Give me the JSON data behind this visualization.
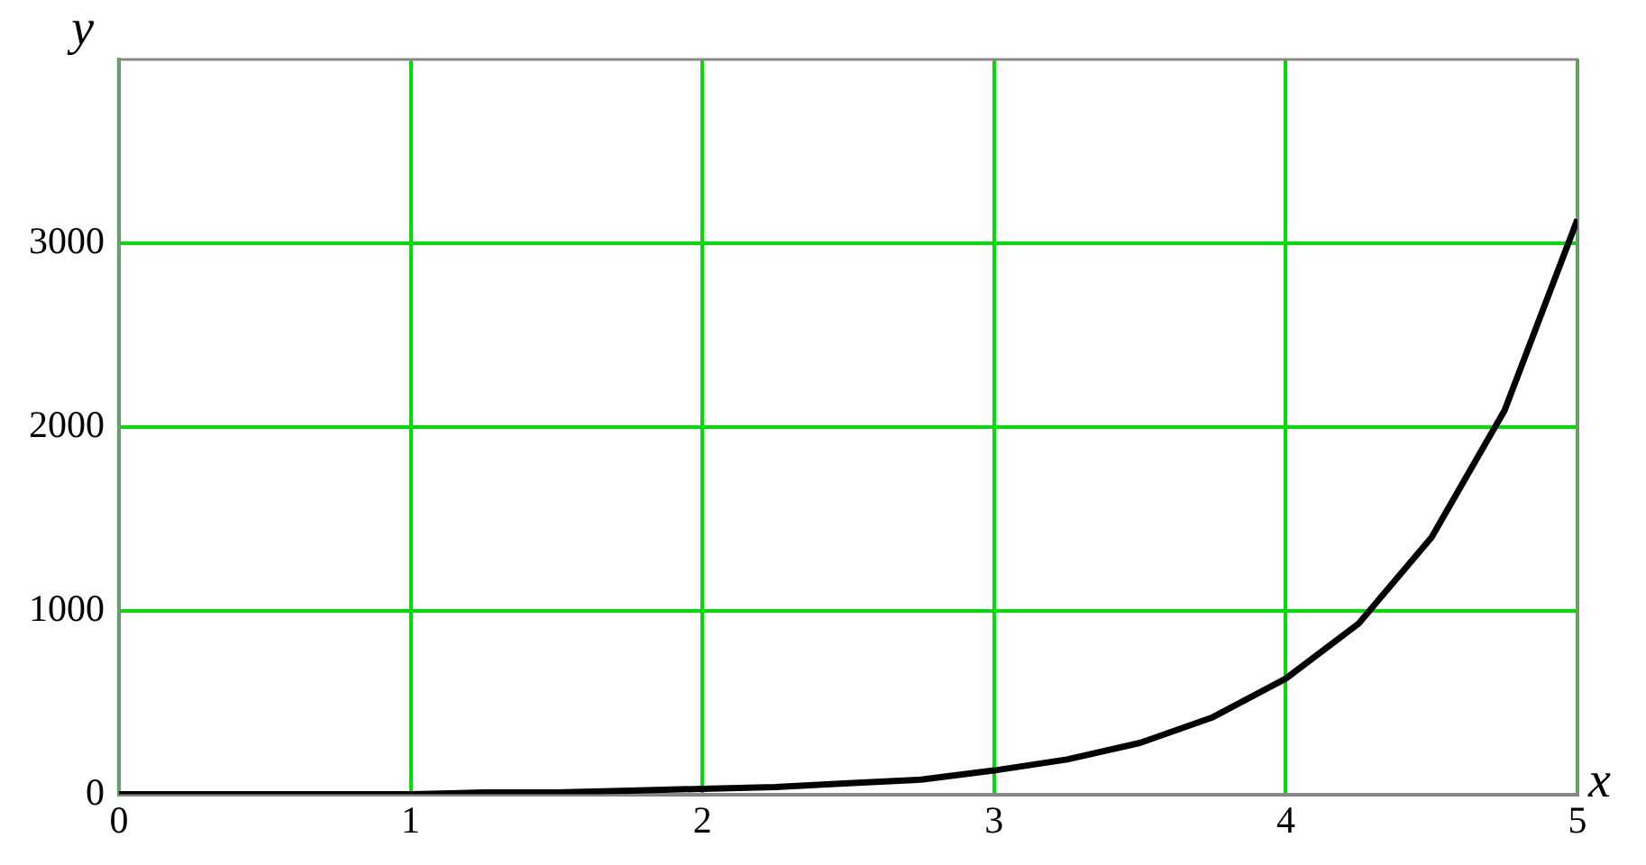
{
  "chart_data": {
    "type": "line",
    "xlabel": "x",
    "ylabel": "y",
    "x": [
      0,
      0.25,
      0.5,
      0.75,
      1,
      1.25,
      1.5,
      1.75,
      2,
      2.25,
      2.5,
      2.75,
      3,
      3.25,
      3.5,
      3.75,
      4,
      4.25,
      4.5,
      4.75,
      5
    ],
    "series": [
      {
        "color": "#000000",
        "values": [
          0,
          0,
          0,
          0,
          0,
          10,
          10,
          20,
          30,
          40,
          60,
          80,
          130,
          190,
          280,
          420,
          630,
          930,
          1400,
          2090,
          3130
        ]
      }
    ],
    "xlim": [
      0,
      5
    ],
    "xticks": [
      0,
      1,
      2,
      3,
      4,
      5
    ],
    "ylim": [
      0,
      4000
    ],
    "yticks": [
      0,
      1000,
      2000,
      3000
    ],
    "grid": true,
    "legend": false,
    "marker": "none",
    "line_style": "solid"
  }
}
